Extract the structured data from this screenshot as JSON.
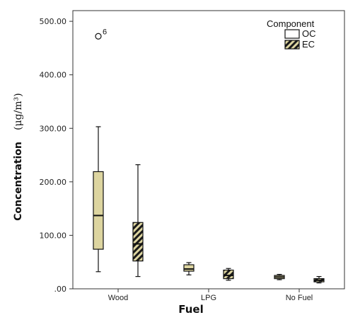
{
  "chart_data": {
    "type": "boxplot",
    "xlabel": "Fuel",
    "ylabel": "Concentration",
    "ylabel_unit": "(μg/m³)",
    "ylim": [
      0,
      520
    ],
    "yticks": [
      {
        "value": 0,
        "label": ".00"
      },
      {
        "value": 100,
        "label": "100.00"
      },
      {
        "value": 200,
        "label": "200.00"
      },
      {
        "value": 300,
        "label": "300.00"
      },
      {
        "value": 400,
        "label": "400.00"
      },
      {
        "value": 500,
        "label": "500.00"
      }
    ],
    "grid": false,
    "categories": [
      "Wood",
      "LPG",
      "No Fuel"
    ],
    "legend": {
      "title": "Component",
      "position": "top-right",
      "items": [
        {
          "label": "OC",
          "pattern": "plain"
        },
        {
          "label": "EC",
          "pattern": "hatched"
        }
      ]
    },
    "colors": {
      "box_fill": "#ddd5a0",
      "hatch": "#1a1a1a",
      "line": "#111111"
    },
    "series": [
      {
        "name": "OC",
        "boxes": [
          {
            "category": "Wood",
            "min": 32,
            "q1": 74,
            "median": 137,
            "q3": 219,
            "max": 303
          },
          {
            "category": "LPG",
            "min": 26,
            "q1": 33,
            "median": 37,
            "q3": 45,
            "max": 49
          },
          {
            "category": "No Fuel",
            "min": 17,
            "q1": 19,
            "median": 22,
            "q3": 25,
            "max": 27
          }
        ],
        "outliers": [
          {
            "category": "Wood",
            "value": 472,
            "label": "6"
          }
        ]
      },
      {
        "name": "EC",
        "boxes": [
          {
            "category": "Wood",
            "min": 23,
            "q1": 52,
            "median": 84,
            "q3": 124,
            "max": 232
          },
          {
            "category": "LPG",
            "min": 16,
            "q1": 19,
            "median": 25,
            "q3": 35,
            "max": 38
          },
          {
            "category": "No Fuel",
            "min": 11,
            "q1": 13,
            "median": 16,
            "q3": 19,
            "max": 23
          }
        ],
        "outliers": []
      }
    ]
  }
}
